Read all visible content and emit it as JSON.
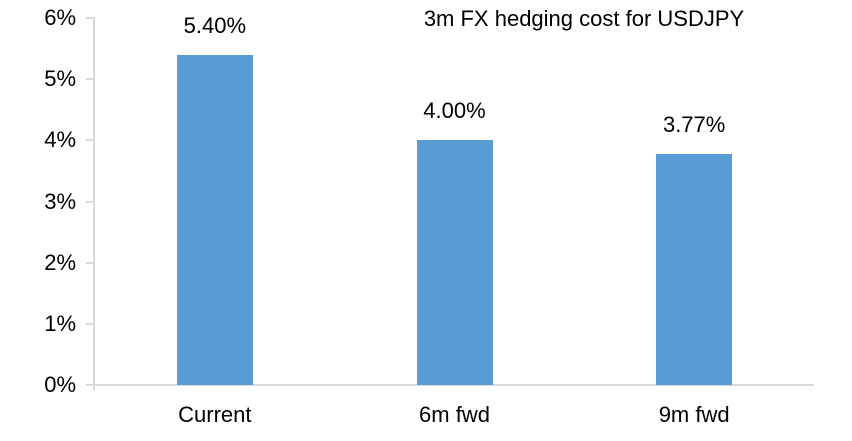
{
  "chart_data": {
    "type": "bar",
    "title": "3m FX hedging cost for USDJPY",
    "categories": [
      "Current",
      "6m fwd",
      "9m fwd"
    ],
    "values": [
      5.4,
      4.0,
      3.77
    ],
    "data_labels": [
      "5.40%",
      "4.00%",
      "3.77%"
    ],
    "y_ticks": [
      "0%",
      "1%",
      "2%",
      "3%",
      "4%",
      "5%",
      "6%"
    ],
    "y_tick_values": [
      0,
      1,
      2,
      3,
      4,
      5,
      6
    ],
    "ylim": [
      0,
      6
    ],
    "xlabel": "",
    "ylabel": "",
    "grid": false,
    "legend": false,
    "colors": {
      "bar": "#5B9BD5",
      "axis_line": "#D9D9D9",
      "text": "#000000",
      "background": "#FFFFFF"
    }
  }
}
